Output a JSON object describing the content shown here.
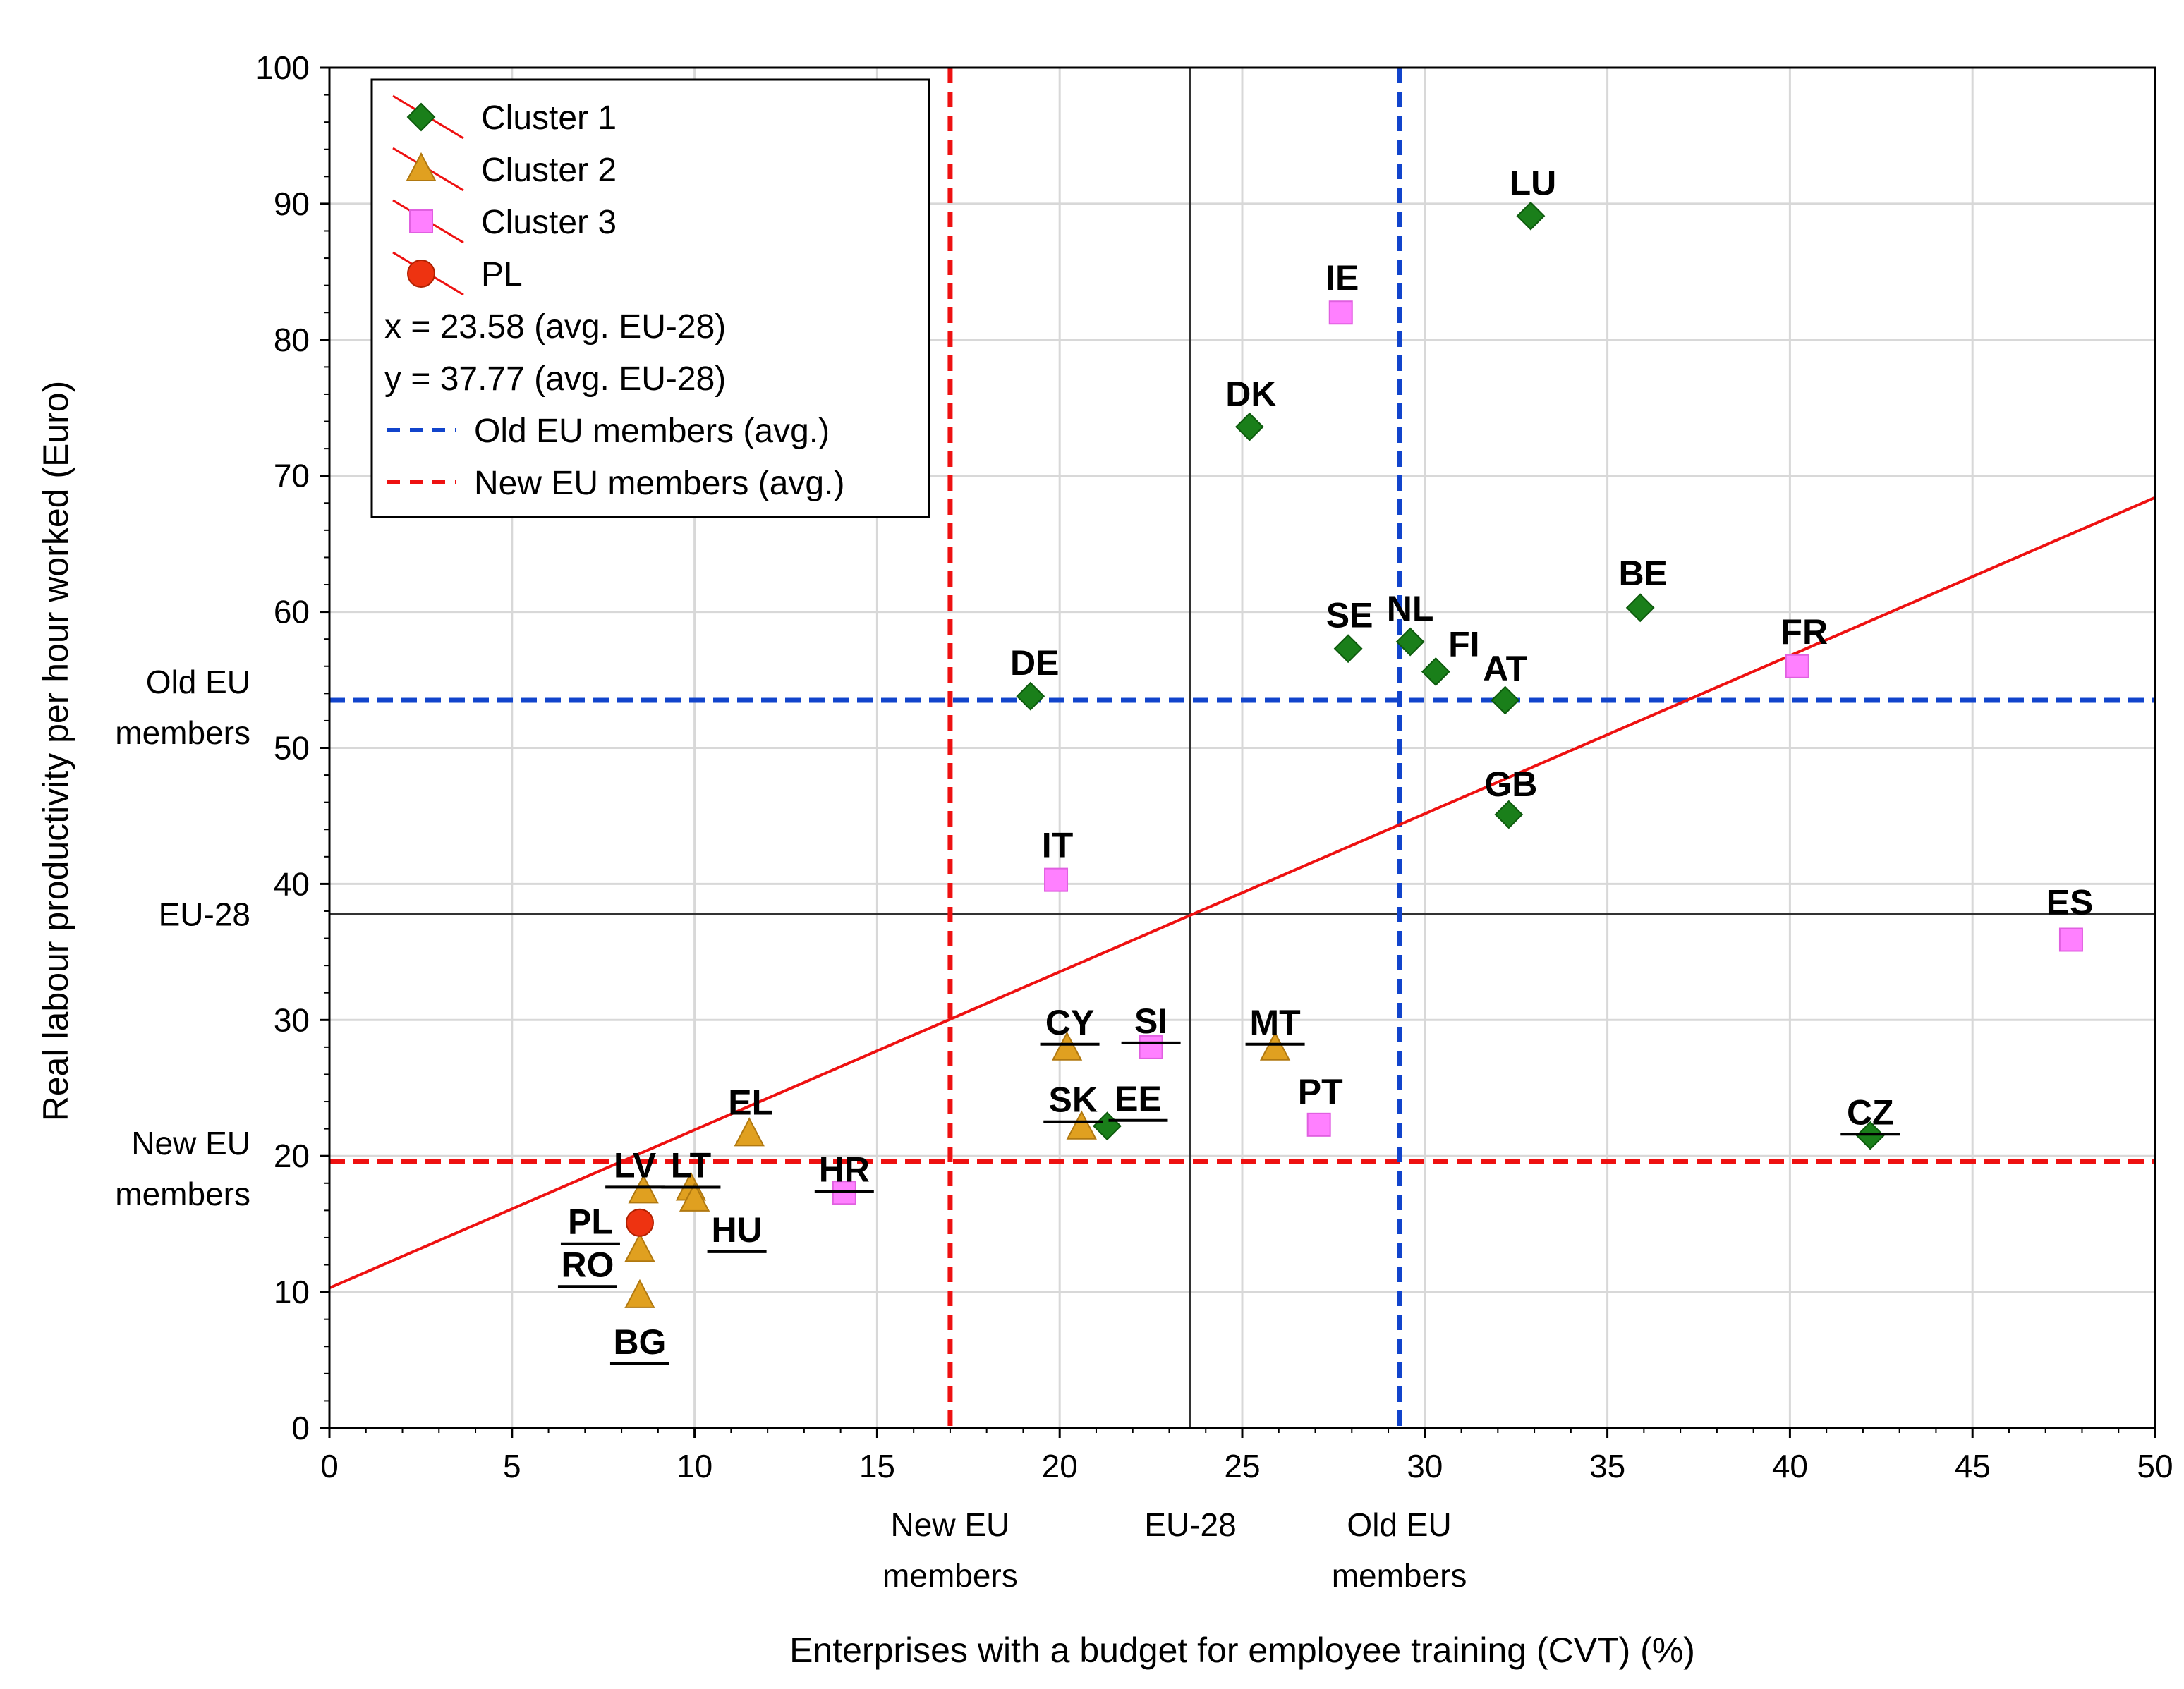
{
  "chart_data": {
    "type": "scatter",
    "xlabel": "Enterprises with a budget for employee training (CVT) (%)",
    "ylabel": "Real labour productivity per hour worked (Euro)",
    "xlim": [
      0,
      50
    ],
    "ylim": [
      0,
      100
    ],
    "xticks": [
      0,
      5,
      10,
      15,
      20,
      25,
      30,
      35,
      40,
      45,
      50
    ],
    "yticks": [
      0,
      10,
      20,
      30,
      40,
      50,
      60,
      70,
      80,
      90,
      100
    ],
    "grid": true,
    "legend_position": "top-left",
    "colors": {
      "cluster1": "#1a7f1a",
      "cluster2": "#e0a020",
      "cluster3": "#ff80ff",
      "pl": "#ee3311",
      "old_eu": "#1144cc",
      "new_eu": "#ee1111",
      "trend": "#ee1111",
      "eu28": "#333333",
      "grid": "#d8d8d8"
    },
    "legend": [
      {
        "key": "cluster1",
        "label": "Cluster 1",
        "marker": "diamond"
      },
      {
        "key": "cluster2",
        "label": "Cluster 2",
        "marker": "triangle"
      },
      {
        "key": "cluster3",
        "label": "Cluster 3",
        "marker": "square"
      },
      {
        "key": "pl",
        "label": "PL",
        "marker": "circle"
      },
      {
        "key": "x_avg",
        "label": "x = 23.58 (avg. EU-28)"
      },
      {
        "key": "y_avg",
        "label": "y = 37.77 (avg. EU-28)"
      },
      {
        "key": "old_eu",
        "label": "Old EU members (avg.)",
        "line": "dashed"
      },
      {
        "key": "new_eu",
        "label": "New EU members (avg.)",
        "line": "dashed"
      }
    ],
    "reference_lines": {
      "eu28": {
        "x": 23.58,
        "y": 37.77
      },
      "old_eu": {
        "x": 29.3,
        "y": 53.5
      },
      "new_eu": {
        "x": 17.0,
        "y": 19.6
      }
    },
    "reference_labels": {
      "x_new_eu": [
        "New EU",
        "members"
      ],
      "x_eu28": [
        "EU-28"
      ],
      "x_old_eu": [
        "Old EU",
        "members"
      ],
      "y_old_eu": [
        "Old EU",
        "members"
      ],
      "y_eu28": [
        "EU-28"
      ],
      "y_new_eu": [
        "New EU",
        "members"
      ]
    },
    "trendline": {
      "x": [
        0,
        50
      ],
      "y": [
        10.3,
        68.4
      ]
    },
    "series": [
      {
        "name": "Cluster 1",
        "key": "cluster1",
        "marker": "diamond",
        "points": [
          {
            "label": "LU",
            "x": 32.9,
            "y": 89.1,
            "underline": false
          },
          {
            "label": "DK",
            "x": 25.2,
            "y": 73.6,
            "underline": false
          },
          {
            "label": "BE",
            "x": 35.9,
            "y": 60.3,
            "underline": false
          },
          {
            "label": "SE",
            "x": 27.9,
            "y": 57.3,
            "underline": false
          },
          {
            "label": "NL",
            "x": 29.6,
            "y": 57.8,
            "underline": false
          },
          {
            "label": "FI",
            "x": 30.3,
            "y": 55.6,
            "underline": false
          },
          {
            "label": "AT",
            "x": 32.2,
            "y": 53.5,
            "underline": false
          },
          {
            "label": "DE",
            "x": 19.2,
            "y": 53.8,
            "underline": false
          },
          {
            "label": "GB",
            "x": 32.3,
            "y": 45.1,
            "underline": false
          },
          {
            "label": "EE",
            "x": 21.3,
            "y": 22.2,
            "underline": true
          },
          {
            "label": "CZ",
            "x": 42.2,
            "y": 21.5,
            "underline": true
          }
        ]
      },
      {
        "name": "Cluster 2",
        "key": "cluster2",
        "marker": "triangle",
        "points": [
          {
            "label": "CY",
            "x": 20.2,
            "y": 27.9,
            "underline": true
          },
          {
            "label": "MT",
            "x": 25.9,
            "y": 27.9,
            "underline": true
          },
          {
            "label": "SK",
            "x": 20.6,
            "y": 22.1,
            "underline": true
          },
          {
            "label": "EL",
            "x": 11.5,
            "y": 21.6,
            "underline": false
          },
          {
            "label": "LV",
            "x": 8.6,
            "y": 17.4,
            "underline": true
          },
          {
            "label": "LT",
            "x": 9.9,
            "y": 17.6,
            "underline": true
          },
          {
            "label": "HU",
            "x": 10.0,
            "y": 16.8,
            "underline": true
          },
          {
            "label": "RO",
            "x": 8.5,
            "y": 13.1,
            "underline": true
          },
          {
            "label": "BG",
            "x": 8.5,
            "y": 9.7,
            "underline": true
          }
        ]
      },
      {
        "name": "Cluster 3",
        "key": "cluster3",
        "marker": "square",
        "points": [
          {
            "label": "IE",
            "x": 27.7,
            "y": 82.0,
            "underline": false
          },
          {
            "label": "FR",
            "x": 40.2,
            "y": 56.0,
            "underline": false
          },
          {
            "label": "IT",
            "x": 19.9,
            "y": 40.3,
            "underline": false
          },
          {
            "label": "ES",
            "x": 47.7,
            "y": 35.9,
            "underline": false
          },
          {
            "label": "SI",
            "x": 22.5,
            "y": 28.0,
            "underline": true
          },
          {
            "label": "PT",
            "x": 27.1,
            "y": 22.3,
            "underline": false
          },
          {
            "label": "HR",
            "x": 14.1,
            "y": 17.3,
            "underline": true
          }
        ]
      },
      {
        "name": "PL",
        "key": "pl",
        "marker": "circle",
        "points": [
          {
            "label": "PL",
            "x": 8.5,
            "y": 15.1,
            "underline": true
          }
        ]
      }
    ]
  }
}
